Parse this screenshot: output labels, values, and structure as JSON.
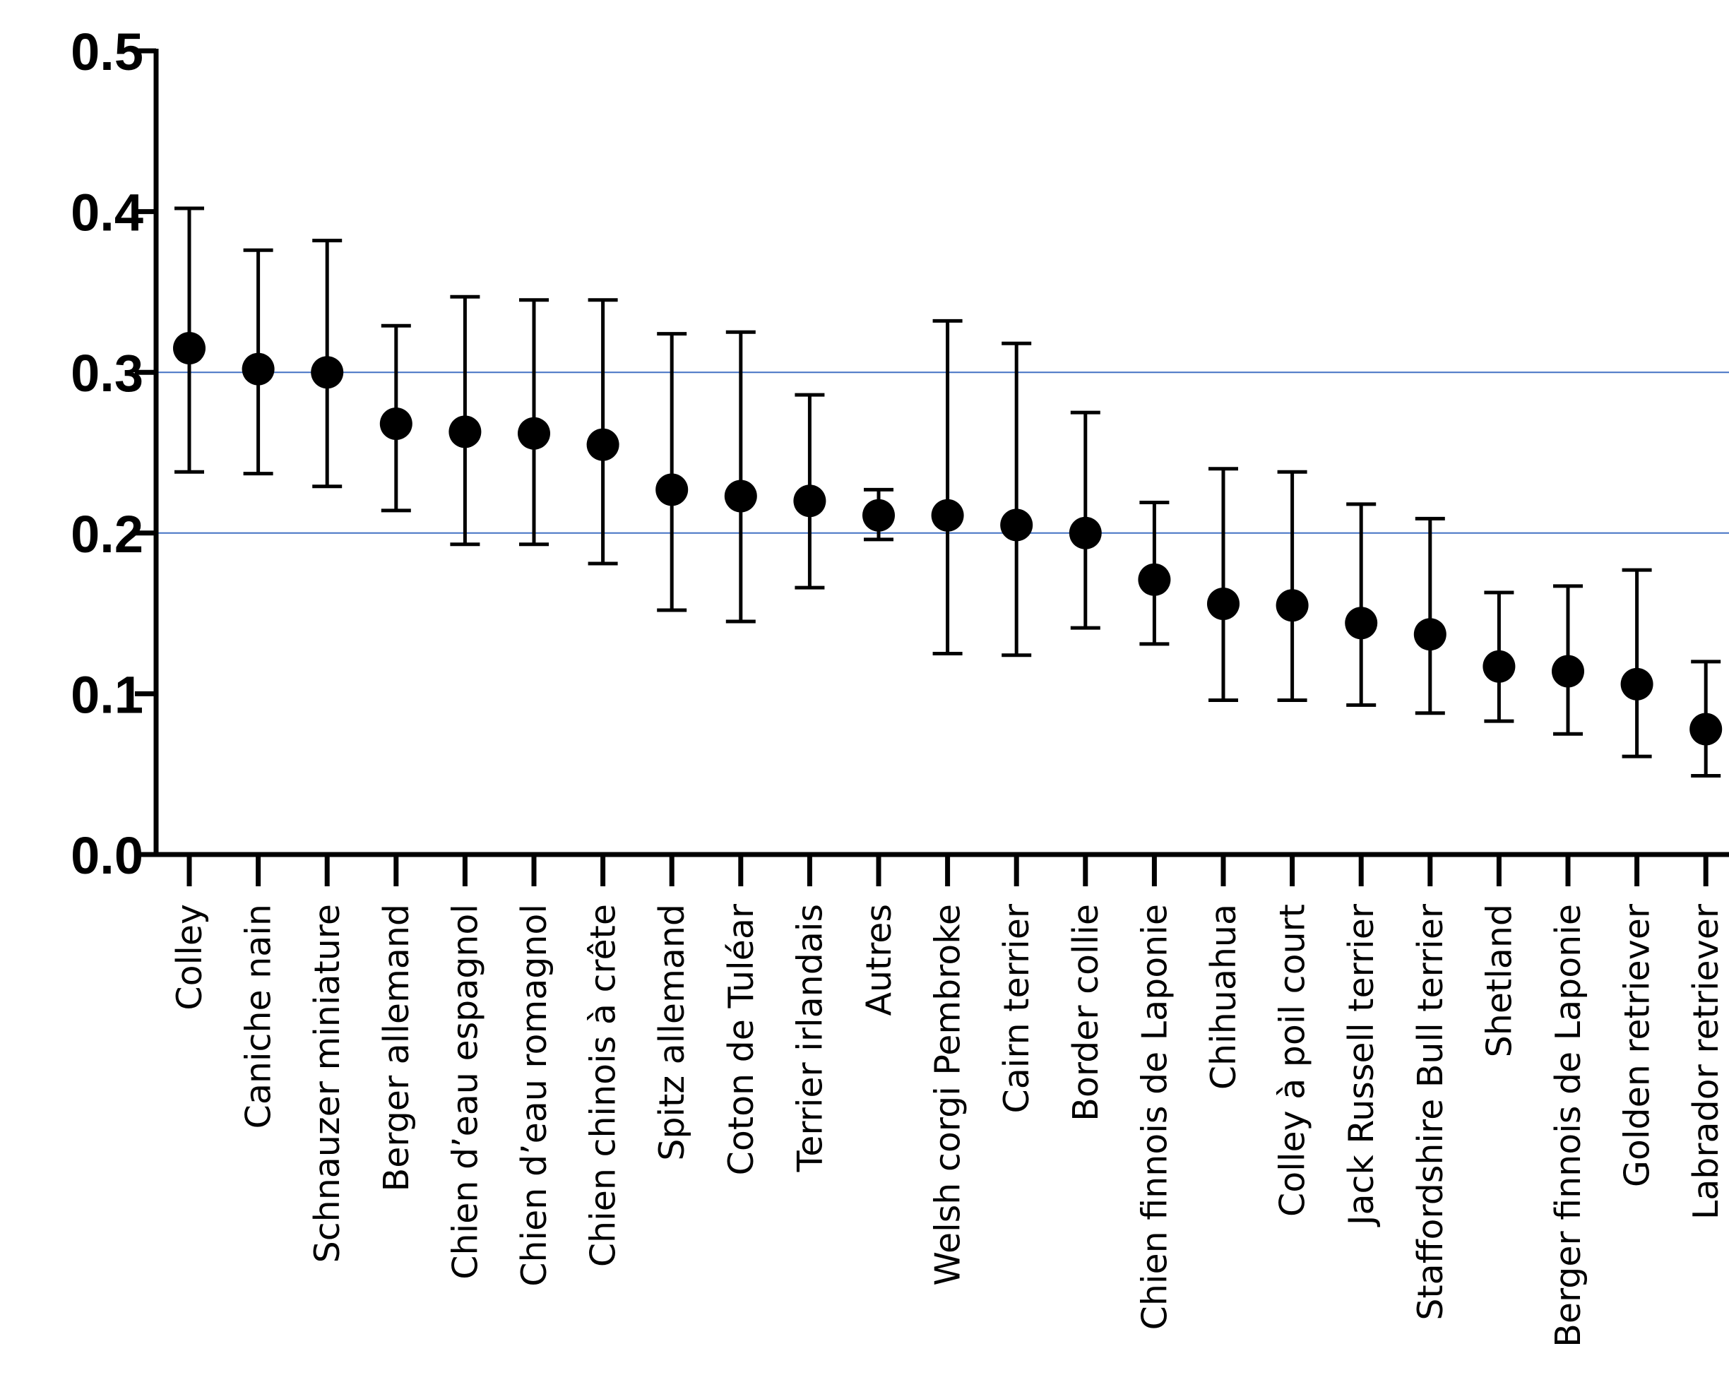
{
  "chart_data": {
    "type": "scatter",
    "title": "",
    "xlabel": "",
    "ylabel": "",
    "ylim": [
      0.0,
      0.5
    ],
    "yticks": [
      "0.0",
      "0.1",
      "0.2",
      "0.3",
      "0.4",
      "0.5"
    ],
    "reference_lines": [
      0.2,
      0.3
    ],
    "reference_line_color": "#4472c4",
    "marker_color": "#000000",
    "grid": false,
    "categories": [
      "Colley",
      "Caniche nain",
      "Schnauzer miniature",
      "Berger allemand",
      "Chien d’eau espagnol",
      "Chien d’eau romagnol",
      "Chien chinois à crête",
      "Spitz allemand",
      "Coton de Tuléar",
      "Terrier irlandais",
      "Autres",
      "Welsh corgi Pembroke",
      "Cairn terrier",
      "Border collie",
      "Chien finnois de Laponie",
      "Chihuahua",
      "Colley à poil court",
      "Jack Russell terrier",
      "Staffordshire Bull terrier",
      "Shetland",
      "Berger finnois de Laponie",
      "Golden retriever",
      "Labrador retriever"
    ],
    "values": [
      0.315,
      0.302,
      0.3,
      0.268,
      0.263,
      0.262,
      0.255,
      0.227,
      0.223,
      0.22,
      0.211,
      0.211,
      0.205,
      0.2,
      0.171,
      0.156,
      0.155,
      0.144,
      0.137,
      0.117,
      0.114,
      0.106,
      0.078
    ],
    "error_low": [
      0.238,
      0.237,
      0.229,
      0.214,
      0.193,
      0.193,
      0.181,
      0.152,
      0.145,
      0.166,
      0.196,
      0.125,
      0.124,
      0.141,
      0.131,
      0.096,
      0.096,
      0.093,
      0.088,
      0.083,
      0.075,
      0.061,
      0.049
    ],
    "error_high": [
      0.402,
      0.376,
      0.382,
      0.329,
      0.347,
      0.345,
      0.345,
      0.324,
      0.325,
      0.286,
      0.227,
      0.332,
      0.318,
      0.275,
      0.219,
      0.24,
      0.238,
      0.218,
      0.209,
      0.163,
      0.167,
      0.177,
      0.12
    ]
  }
}
